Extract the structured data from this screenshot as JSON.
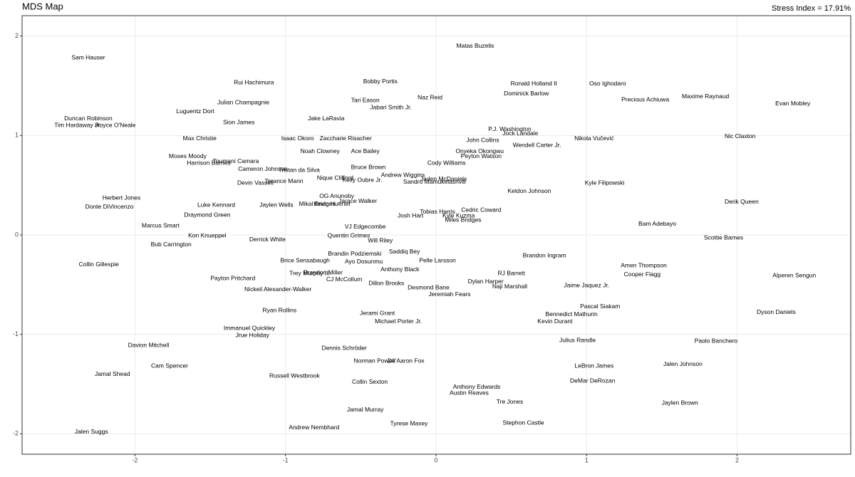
{
  "chart_data": {
    "type": "text-scatter",
    "title": "MDS Map",
    "annotation": "Stress Index = 17.91%",
    "xlim": [
      -2.75,
      2.755
    ],
    "ylim": [
      -2.205,
      2.205
    ],
    "xticks": [
      -2,
      -1,
      0,
      1,
      2
    ],
    "yticks": [
      -2,
      -1,
      0,
      1,
      2
    ],
    "grid": true,
    "color": "#000000",
    "points": [
      {
        "label": "Matas Buzelis",
        "x": 0.26,
        "y": 1.9
      },
      {
        "label": "Sam Hauser",
        "x": -2.31,
        "y": 1.78
      },
      {
        "label": "Rui Hachimura",
        "x": -1.21,
        "y": 1.53
      },
      {
        "label": "Bobby Portis",
        "x": -0.37,
        "y": 1.54
      },
      {
        "label": "Ronald Holland II",
        "x": 0.65,
        "y": 1.52
      },
      {
        "label": "Oso Ighodaro",
        "x": 1.14,
        "y": 1.52
      },
      {
        "label": "Dominick Barlow",
        "x": 0.6,
        "y": 1.42
      },
      {
        "label": "Naz Reid",
        "x": -0.04,
        "y": 1.38
      },
      {
        "label": "Precious Achiuwa",
        "x": 1.39,
        "y": 1.36
      },
      {
        "label": "Maxime Raynaud",
        "x": 1.79,
        "y": 1.39
      },
      {
        "label": "Evan Mobley",
        "x": 2.37,
        "y": 1.32
      },
      {
        "label": "Tari Eason",
        "x": -0.47,
        "y": 1.35
      },
      {
        "label": "Julian Champagnie",
        "x": -1.28,
        "y": 1.33
      },
      {
        "label": "Jabari Smith Jr.",
        "x": -0.3,
        "y": 1.28
      },
      {
        "label": "Luguentz Dort",
        "x": -1.6,
        "y": 1.24
      },
      {
        "label": "Duncan Robinson",
        "x": -2.31,
        "y": 1.17
      },
      {
        "label": "Jake LaRavia",
        "x": -0.73,
        "y": 1.17
      },
      {
        "label": "Sion James",
        "x": -1.31,
        "y": 1.13
      },
      {
        "label": "Tim Hardaway Jr.",
        "x": -2.38,
        "y": 1.1
      },
      {
        "label": "Royce O'Neale",
        "x": -2.13,
        "y": 1.1
      },
      {
        "label": "P.J. Washington",
        "x": 0.49,
        "y": 1.06
      },
      {
        "label": "Jock Landale",
        "x": 0.56,
        "y": 1.02
      },
      {
        "label": "Max Christie",
        "x": -1.57,
        "y": 0.97
      },
      {
        "label": "Isaac Okoro",
        "x": -0.92,
        "y": 0.97
      },
      {
        "label": "Zaccharie Risacher",
        "x": -0.6,
        "y": 0.97
      },
      {
        "label": "John Collins",
        "x": 0.31,
        "y": 0.95
      },
      {
        "label": "Nikola Vučević",
        "x": 1.05,
        "y": 0.97
      },
      {
        "label": "Nic Claxton",
        "x": 2.02,
        "y": 0.99
      },
      {
        "label": "Wendell Carter Jr.",
        "x": 0.67,
        "y": 0.9
      },
      {
        "label": "Noah Clowney",
        "x": -0.77,
        "y": 0.84
      },
      {
        "label": "Ace Bailey",
        "x": -0.47,
        "y": 0.84
      },
      {
        "label": "Onyeka Okongwu",
        "x": 0.29,
        "y": 0.84
      },
      {
        "label": "Peyton Watson",
        "x": 0.3,
        "y": 0.79
      },
      {
        "label": "Moses Moody",
        "x": -1.65,
        "y": 0.79
      },
      {
        "label": "Toumani Camara",
        "x": -1.33,
        "y": 0.74
      },
      {
        "label": "Harrison Barnes",
        "x": -1.51,
        "y": 0.72
      },
      {
        "label": "Cody Williams",
        "x": 0.07,
        "y": 0.72
      },
      {
        "label": "Cameron Johnson",
        "x": -1.15,
        "y": 0.66
      },
      {
        "label": "Tristan da Silva",
        "x": -0.91,
        "y": 0.65
      },
      {
        "label": "Bruce Brown",
        "x": -0.45,
        "y": 0.68
      },
      {
        "label": "Andrew Wiggins",
        "x": -0.22,
        "y": 0.6
      },
      {
        "label": "Nique Clifford",
        "x": -0.67,
        "y": 0.57
      },
      {
        "label": "Kelly Oubre Jr.",
        "x": -0.49,
        "y": 0.55
      },
      {
        "label": "Jaden McDaniels",
        "x": 0.05,
        "y": 0.56
      },
      {
        "label": "Sandro Mamukelashvili",
        "x": -0.01,
        "y": 0.53
      },
      {
        "label": "Terance Mann",
        "x": -1.01,
        "y": 0.54
      },
      {
        "label": "Devin Vassell",
        "x": -1.2,
        "y": 0.52
      },
      {
        "label": "Kyle Filipowski",
        "x": 1.12,
        "y": 0.52
      },
      {
        "label": "Keldon Johnson",
        "x": 0.62,
        "y": 0.44
      },
      {
        "label": "Herbert Jones",
        "x": -2.09,
        "y": 0.37
      },
      {
        "label": "OG Anunoby",
        "x": -0.66,
        "y": 0.39
      },
      {
        "label": "Jarace Walker",
        "x": -0.52,
        "y": 0.34
      },
      {
        "label": "Kevin Huerter",
        "x": -0.69,
        "y": 0.31
      },
      {
        "label": "Mikal Bridges",
        "x": -0.79,
        "y": 0.31
      },
      {
        "label": "Derik Queen",
        "x": 2.03,
        "y": 0.33
      },
      {
        "label": "Luke Kennard",
        "x": -1.46,
        "y": 0.3
      },
      {
        "label": "Jaylen Wells",
        "x": -1.06,
        "y": 0.3
      },
      {
        "label": "Donte DiVincenzo",
        "x": -2.17,
        "y": 0.28
      },
      {
        "label": "Cedric Coward",
        "x": 0.3,
        "y": 0.25
      },
      {
        "label": "Tobias Harris",
        "x": 0.01,
        "y": 0.23
      },
      {
        "label": "Kyle Kuzma",
        "x": 0.15,
        "y": 0.19
      },
      {
        "label": "Josh Hart",
        "x": -0.17,
        "y": 0.19
      },
      {
        "label": "Draymond Green",
        "x": -1.52,
        "y": 0.2
      },
      {
        "label": "Miles Bridges",
        "x": 0.18,
        "y": 0.15
      },
      {
        "label": "Bam Adebayo",
        "x": 1.47,
        "y": 0.11
      },
      {
        "label": "Marcus Smart",
        "x": -1.83,
        "y": 0.09
      },
      {
        "label": "VJ Edgecombe",
        "x": -0.47,
        "y": 0.08
      },
      {
        "label": "Kon Knueppel",
        "x": -1.52,
        "y": -0.01
      },
      {
        "label": "Quentin Grimes",
        "x": -0.58,
        "y": -0.01
      },
      {
        "label": "Scottie Barnes",
        "x": 1.91,
        "y": -0.03
      },
      {
        "label": "Derrick White",
        "x": -1.12,
        "y": -0.05
      },
      {
        "label": "Will Riley",
        "x": -0.37,
        "y": -0.06
      },
      {
        "label": "Bub Carrington",
        "x": -1.76,
        "y": -0.1
      },
      {
        "label": "Saddiq Bey",
        "x": -0.21,
        "y": -0.17
      },
      {
        "label": "Brandin Podziemski",
        "x": -0.54,
        "y": -0.19
      },
      {
        "label": "Brandon Ingram",
        "x": 0.72,
        "y": -0.21
      },
      {
        "label": "Brice Sensabaugh",
        "x": -0.87,
        "y": -0.26
      },
      {
        "label": "Ayo Dosunmu",
        "x": -0.48,
        "y": -0.27
      },
      {
        "label": "Pelle Larsson",
        "x": 0.01,
        "y": -0.26
      },
      {
        "label": "Collin Gillespie",
        "x": -2.24,
        "y": -0.3
      },
      {
        "label": "Amen Thompson",
        "x": 1.38,
        "y": -0.31
      },
      {
        "label": "Anthony Black",
        "x": -0.24,
        "y": -0.35
      },
      {
        "label": "Trey Murphy III",
        "x": -0.84,
        "y": -0.39
      },
      {
        "label": "Brandon Miller",
        "x": -0.75,
        "y": -0.38
      },
      {
        "label": "RJ Barrett",
        "x": 0.5,
        "y": -0.39
      },
      {
        "label": "Cooper Flagg",
        "x": 1.37,
        "y": -0.4
      },
      {
        "label": "Alperen Sengun",
        "x": 2.38,
        "y": -0.41
      },
      {
        "label": "CJ McCollum",
        "x": -0.61,
        "y": -0.45
      },
      {
        "label": "Payton Pritchard",
        "x": -1.35,
        "y": -0.44
      },
      {
        "label": "Dylan Harper",
        "x": 0.33,
        "y": -0.47
      },
      {
        "label": "Dillon Brooks",
        "x": -0.33,
        "y": -0.49
      },
      {
        "label": "Jaime Jaquez Jr.",
        "x": 1.0,
        "y": -0.51
      },
      {
        "label": "Naji Marshall",
        "x": 0.49,
        "y": -0.52
      },
      {
        "label": "Desmond Bane",
        "x": -0.05,
        "y": -0.53
      },
      {
        "label": "Nickeil Alexander-Walker",
        "x": -1.05,
        "y": -0.55
      },
      {
        "label": "Jeremiah Fears",
        "x": 0.09,
        "y": -0.6
      },
      {
        "label": "Pascal Siakam",
        "x": 1.09,
        "y": -0.72
      },
      {
        "label": "Ryan Rollins",
        "x": -1.04,
        "y": -0.76
      },
      {
        "label": "Jerami Grant",
        "x": -0.39,
        "y": -0.79
      },
      {
        "label": "Dyson Daniels",
        "x": 2.26,
        "y": -0.78
      },
      {
        "label": "Bennedict Mathurin",
        "x": 0.9,
        "y": -0.8
      },
      {
        "label": "Michael Porter Jr.",
        "x": -0.25,
        "y": -0.87
      },
      {
        "label": "Kevin Durant",
        "x": 0.79,
        "y": -0.87
      },
      {
        "label": "Immanuel Quickley",
        "x": -1.24,
        "y": -0.94
      },
      {
        "label": "Jrue Holiday",
        "x": -1.22,
        "y": -1.01
      },
      {
        "label": "Julius Randle",
        "x": 0.94,
        "y": -1.06
      },
      {
        "label": "Paolo Banchero",
        "x": 1.86,
        "y": -1.07
      },
      {
        "label": "Davion Mitchell",
        "x": -1.91,
        "y": -1.11
      },
      {
        "label": "Dennis Schröder",
        "x": -0.61,
        "y": -1.14
      },
      {
        "label": "Norman Powell",
        "x": -0.41,
        "y": -1.27
      },
      {
        "label": "De'Aaron Fox",
        "x": -0.2,
        "y": -1.27
      },
      {
        "label": "Jalen Johnson",
        "x": 1.64,
        "y": -1.3
      },
      {
        "label": "Cam Spencer",
        "x": -1.77,
        "y": -1.32
      },
      {
        "label": "LeBron James",
        "x": 1.05,
        "y": -1.32
      },
      {
        "label": "Jamal Shead",
        "x": -2.15,
        "y": -1.4
      },
      {
        "label": "Russell Westbrook",
        "x": -0.94,
        "y": -1.42
      },
      {
        "label": "DeMar DeRozan",
        "x": 1.04,
        "y": -1.47
      },
      {
        "label": "Collin Sexton",
        "x": -0.44,
        "y": -1.48
      },
      {
        "label": "Anthony Edwards",
        "x": 0.27,
        "y": -1.53
      },
      {
        "label": "Austin Reaves",
        "x": 0.22,
        "y": -1.59
      },
      {
        "label": "Tre Jones",
        "x": 0.49,
        "y": -1.68
      },
      {
        "label": "Jaylen Brown",
        "x": 1.62,
        "y": -1.69
      },
      {
        "label": "Jamal Murray",
        "x": -0.47,
        "y": -1.76
      },
      {
        "label": "Stephon Castle",
        "x": 0.58,
        "y": -1.89
      },
      {
        "label": "Tyrese Maxey",
        "x": -0.18,
        "y": -1.9
      },
      {
        "label": "Andrew Nembhard",
        "x": -0.81,
        "y": -1.94
      },
      {
        "label": "Jalen Suggs",
        "x": -2.29,
        "y": -1.98
      }
    ]
  }
}
